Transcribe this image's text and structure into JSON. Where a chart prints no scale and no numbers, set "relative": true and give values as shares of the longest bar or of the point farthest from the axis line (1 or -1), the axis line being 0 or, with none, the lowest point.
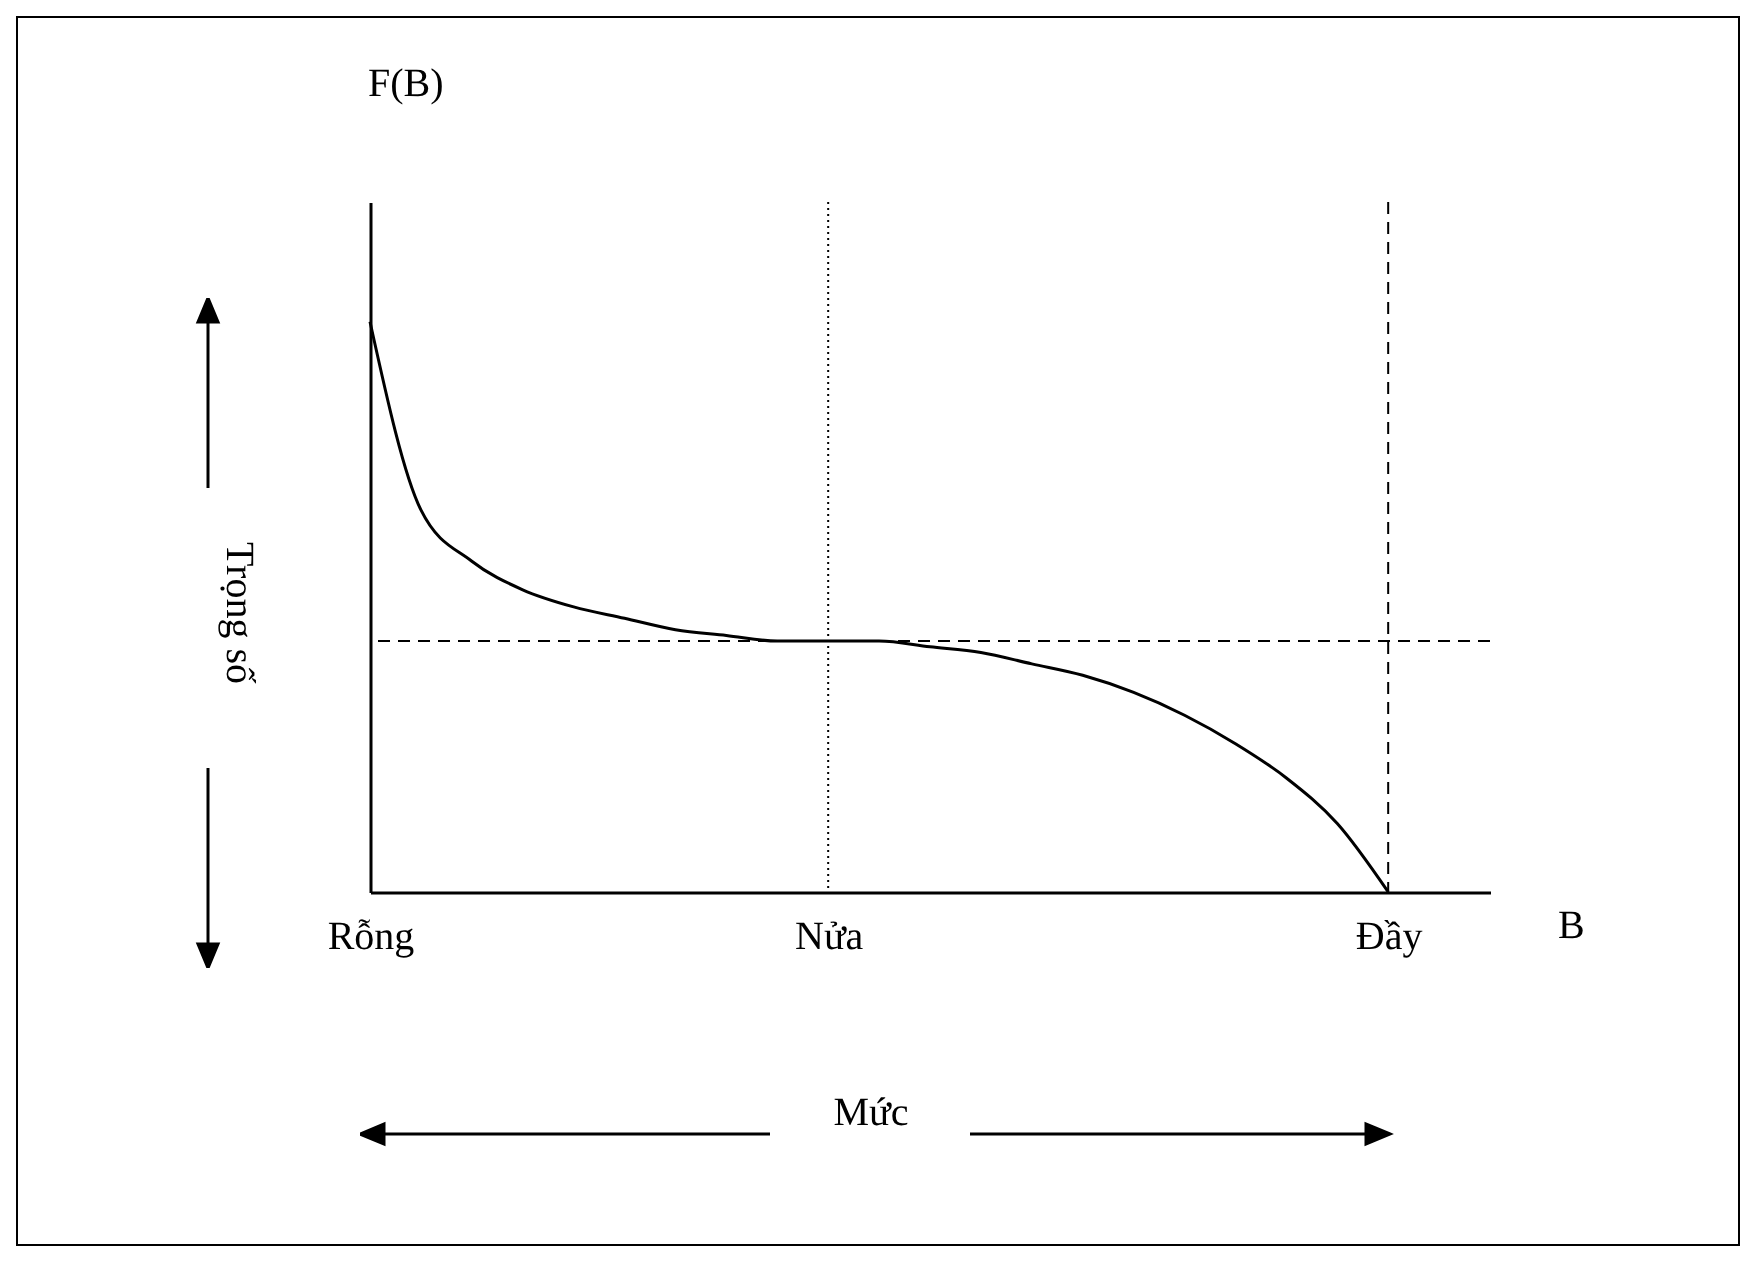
{
  "chart_data": {
    "type": "line",
    "relative": true,
    "xlabel": "Mức",
    "ylabel": "Trọng số",
    "annotations": [
      "F(B)",
      "B"
    ],
    "categories": [
      "Rỗng",
      null,
      null,
      null,
      null,
      null,
      null,
      null,
      null,
      "Nửa",
      null,
      null,
      null,
      null,
      null,
      null,
      null,
      null,
      null,
      null,
      "Đầy",
      null,
      null
    ],
    "series": [
      {
        "color": "#000000",
        "values": [
          1,
          0.67,
          0.58,
          0.53,
          0.5,
          0.48,
          0.46,
          0.45,
          0.44,
          0.44,
          0.44,
          0.43,
          0.42,
          0.4,
          0.38,
          0.35,
          0.31,
          0.26,
          0.2,
          0.12,
          0,
          null,
          null
        ]
      }
    ],
    "ref_lines": [
      {
        "axis": "y",
        "value": 0.44,
        "line_style": "dashed",
        "color": "#000000"
      },
      {
        "axis": "x",
        "value": "Đầy",
        "line_style": "dashed",
        "color": "#000000"
      },
      {
        "axis": "x",
        "value": "Nửa",
        "line_style": "dotted",
        "color": "#000000"
      }
    ],
    "grid": false,
    "marker": "none",
    "line_style": "solid"
  }
}
